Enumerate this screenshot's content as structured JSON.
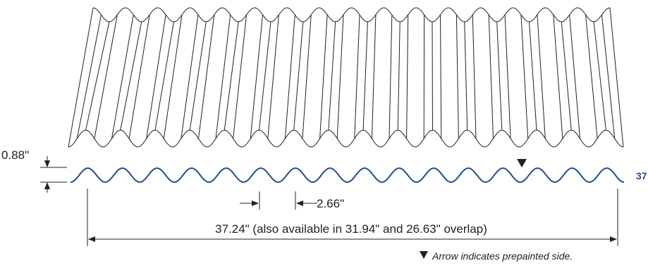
{
  "dimensions": {
    "height": "0.88\"",
    "pitch": "2.66\"",
    "coverage": "37.24\" (also available in 31.94\" and 26.63\" overlap)",
    "edge_label": "37"
  },
  "note": {
    "icon": "down-triangle-icon",
    "text": "Arrow indicates prepainted side."
  },
  "colors": {
    "profile": "#1f4e8c",
    "line": "#222222",
    "edge_label": "#1f4e8c"
  },
  "corrugations": 16
}
